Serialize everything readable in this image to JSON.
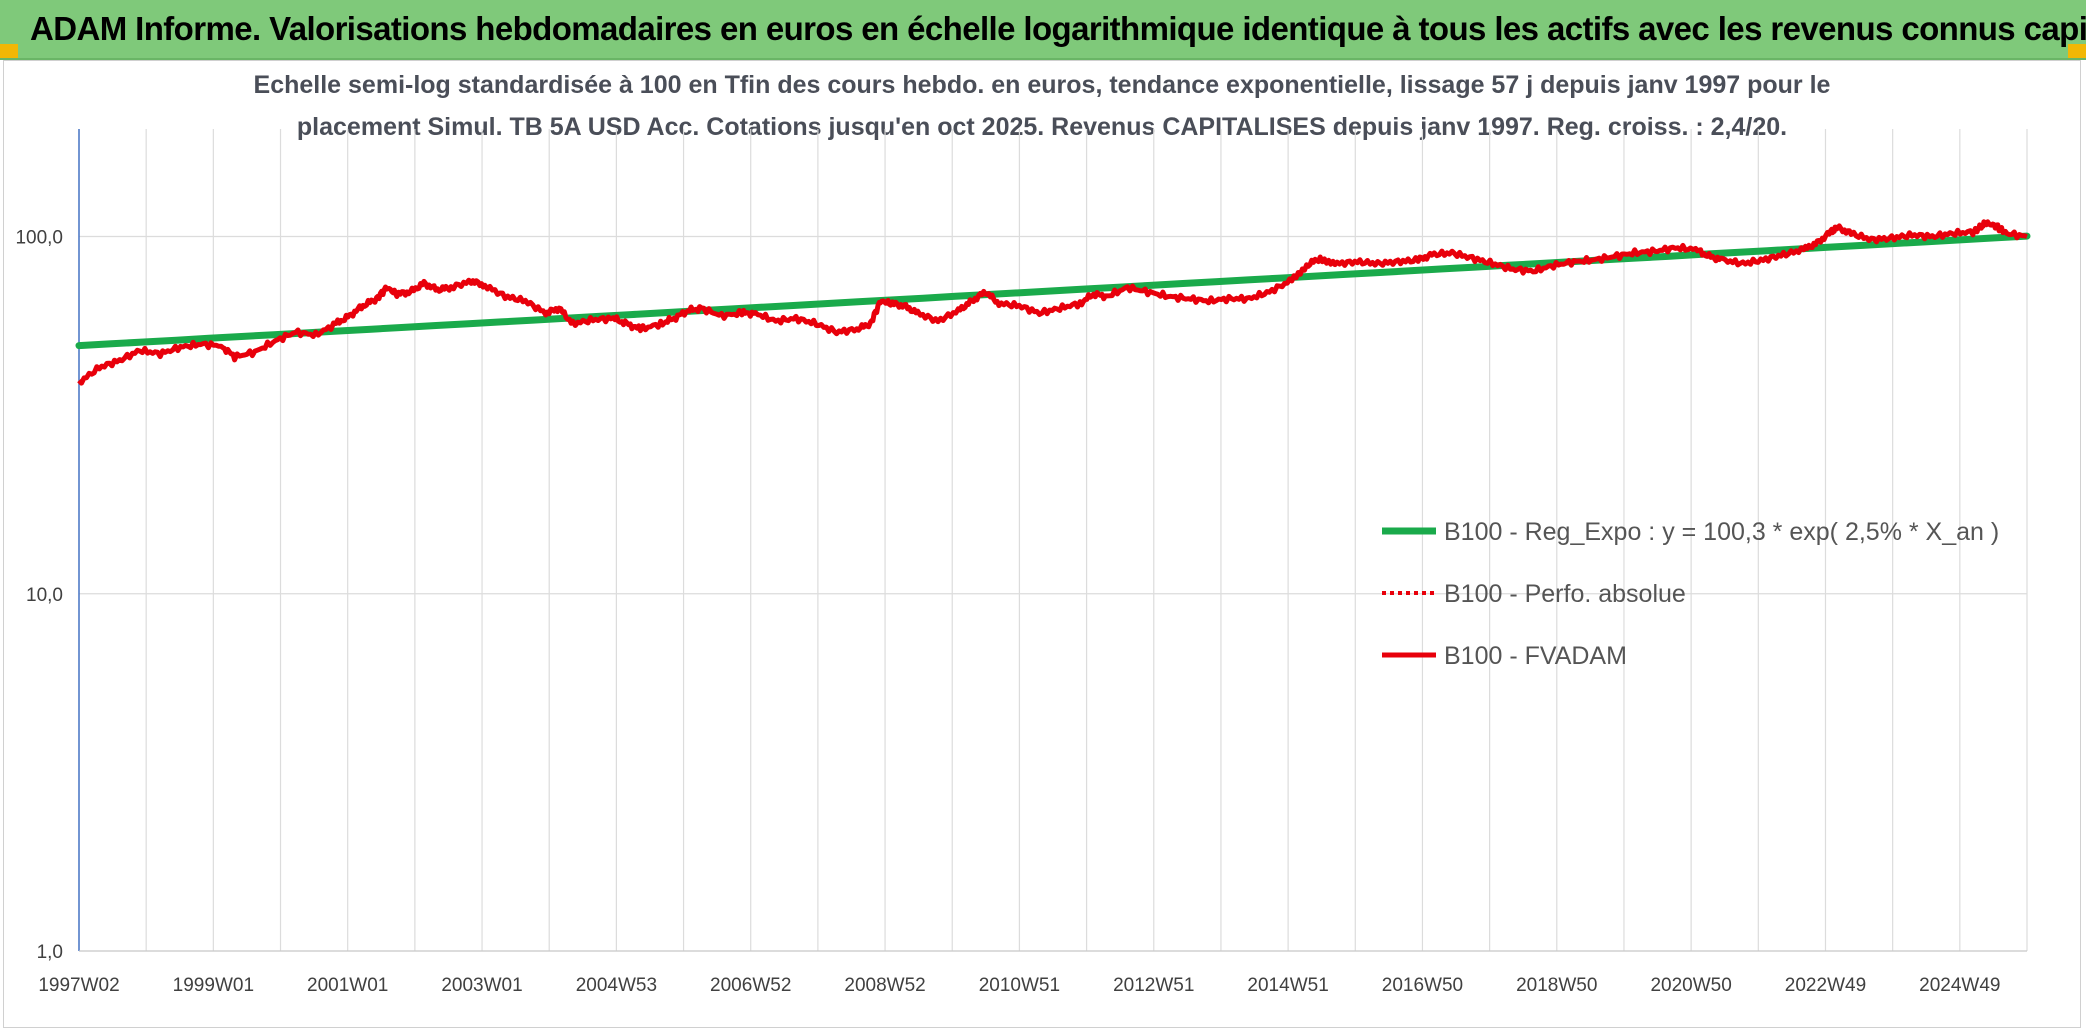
{
  "header": {
    "title": "ADAM Informe. Valorisations hebdomadaires en euros en échelle logarithmique identique à tous les actifs avec les revenus connus capitalisés"
  },
  "colors": {
    "header_band": "#7fc97a",
    "corner_accent": "#f2b705",
    "trend_line": "#1aaa4b",
    "series_line": "#e8000b",
    "grid": "#dcdcdc",
    "y_axis": "#4472c4"
  },
  "chart_data": {
    "type": "line",
    "subtitle_lines": [
      "Echelle semi-log standardisée à 100 en Tfin des cours hebdo. en euros, tendance exponentielle, lissage 57 j depuis janv 1997 pour le",
      "placement Simul. TB 5A USD Acc. Cotations jusqu'en oct 2025. Revenus CAPITALISES depuis janv 1997. Reg. croiss. : 2,4/20."
    ],
    "x_tick_labels": [
      "1997W02",
      "1999W01",
      "2001W01",
      "2003W01",
      "2004W53",
      "2006W52",
      "2008W52",
      "2010W51",
      "2012W51",
      "2014W51",
      "2016W50",
      "2018W50",
      "2020W50",
      "2022W49",
      "2024W49"
    ],
    "x_range": [
      1997.0,
      2025.8
    ],
    "y_scale": "log",
    "y_range": [
      1,
      200
    ],
    "y_ticks": [
      1,
      10,
      100
    ],
    "y_tick_labels": [
      "1,0",
      "10,0",
      "100,0"
    ],
    "grid": "vertical-lines",
    "legend_position": "lower-right",
    "series": [
      {
        "name": "B100 - Reg_Expo : y = 100,3 * exp( 2,5% *  X_an )",
        "style": "solid-thick",
        "color": "#1aaa4b",
        "points": [
          [
            1997.0,
            49.5
          ],
          [
            2025.8,
            100.3
          ]
        ]
      },
      {
        "name": "B100 - Perfo. absolue",
        "style": "dotted",
        "color": "#e8000b",
        "points": []
      },
      {
        "name": "B100 - FVADAM",
        "style": "solid",
        "color": "#e8000b",
        "points": [
          [
            1997.0,
            39
          ],
          [
            1997.3,
            43
          ],
          [
            1997.6,
            45
          ],
          [
            1997.9,
            48
          ],
          [
            1998.2,
            47
          ],
          [
            1998.5,
            49
          ],
          [
            1998.8,
            50
          ],
          [
            1999.1,
            49.5
          ],
          [
            1999.3,
            46
          ],
          [
            1999.6,
            47.5
          ],
          [
            1999.9,
            51
          ],
          [
            2000.2,
            54
          ],
          [
            2000.5,
            53
          ],
          [
            2000.8,
            57
          ],
          [
            2001.0,
            60
          ],
          [
            2001.2,
            64
          ],
          [
            2001.4,
            67
          ],
          [
            2001.55,
            72
          ],
          [
            2001.7,
            69
          ],
          [
            2001.9,
            70
          ],
          [
            2002.1,
            74
          ],
          [
            2002.3,
            71
          ],
          [
            2002.5,
            72
          ],
          [
            2002.8,
            75
          ],
          [
            2003.0,
            73
          ],
          [
            2003.3,
            68
          ],
          [
            2003.6,
            66
          ],
          [
            2003.9,
            61
          ],
          [
            2004.1,
            63
          ],
          [
            2004.3,
            57
          ],
          [
            2004.6,
            58.5
          ],
          [
            2004.9,
            59
          ],
          [
            2005.1,
            57
          ],
          [
            2005.3,
            55
          ],
          [
            2005.6,
            57
          ],
          [
            2005.8,
            59
          ],
          [
            2006.0,
            62
          ],
          [
            2006.2,
            63
          ],
          [
            2006.5,
            60
          ],
          [
            2006.8,
            61
          ],
          [
            2007.0,
            61
          ],
          [
            2007.3,
            58
          ],
          [
            2007.6,
            59
          ],
          [
            2007.9,
            57
          ],
          [
            2008.2,
            54
          ],
          [
            2008.5,
            55
          ],
          [
            2008.7,
            57
          ],
          [
            2008.85,
            66
          ],
          [
            2009.0,
            65
          ],
          [
            2009.2,
            64
          ],
          [
            2009.4,
            61
          ],
          [
            2009.7,
            58
          ],
          [
            2010.0,
            62
          ],
          [
            2010.2,
            66
          ],
          [
            2010.4,
            70
          ],
          [
            2010.6,
            65
          ],
          [
            2010.9,
            64
          ],
          [
            2011.2,
            61
          ],
          [
            2011.5,
            63
          ],
          [
            2011.8,
            65
          ],
          [
            2012.0,
            69
          ],
          [
            2012.2,
            68
          ],
          [
            2012.5,
            72
          ],
          [
            2012.8,
            70
          ],
          [
            2013.1,
            68
          ],
          [
            2013.4,
            67
          ],
          [
            2013.7,
            66
          ],
          [
            2014.0,
            67
          ],
          [
            2014.3,
            67
          ],
          [
            2014.6,
            70
          ],
          [
            2014.9,
            75
          ],
          [
            2015.15,
            83
          ],
          [
            2015.35,
            87
          ],
          [
            2015.6,
            84
          ],
          [
            2015.9,
            85
          ],
          [
            2016.2,
            84
          ],
          [
            2016.5,
            85
          ],
          [
            2016.8,
            86
          ],
          [
            2017.0,
            89
          ],
          [
            2017.3,
            90
          ],
          [
            2017.6,
            87
          ],
          [
            2017.9,
            84
          ],
          [
            2018.2,
            81
          ],
          [
            2018.5,
            80
          ],
          [
            2018.8,
            83
          ],
          [
            2019.1,
            85
          ],
          [
            2019.4,
            86
          ],
          [
            2019.7,
            88
          ],
          [
            2020.0,
            90
          ],
          [
            2020.3,
            91
          ],
          [
            2020.6,
            93
          ],
          [
            2020.9,
            92
          ],
          [
            2021.1,
            88
          ],
          [
            2021.3,
            86
          ],
          [
            2021.6,
            84
          ],
          [
            2021.9,
            86
          ],
          [
            2022.2,
            89
          ],
          [
            2022.5,
            92
          ],
          [
            2022.7,
            96
          ],
          [
            2022.9,
            103
          ],
          [
            2023.0,
            106
          ],
          [
            2023.2,
            102
          ],
          [
            2023.5,
            98
          ],
          [
            2023.8,
            99
          ],
          [
            2024.1,
            101
          ],
          [
            2024.4,
            100
          ],
          [
            2024.7,
            102
          ],
          [
            2025.0,
            103
          ],
          [
            2025.1,
            106
          ],
          [
            2025.2,
            109
          ],
          [
            2025.35,
            107
          ],
          [
            2025.5,
            102
          ],
          [
            2025.8,
            100
          ]
        ]
      }
    ]
  }
}
